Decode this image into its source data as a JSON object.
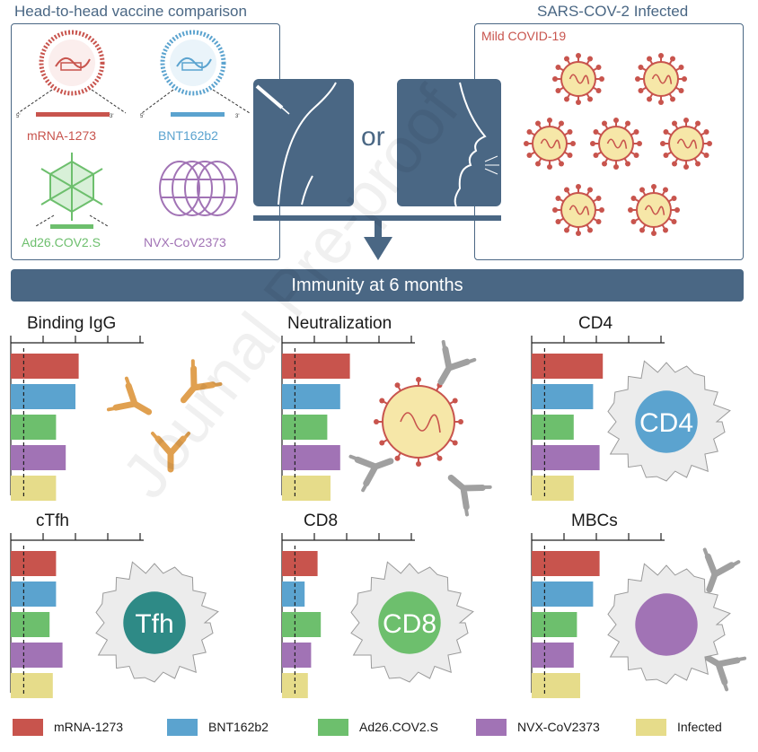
{
  "header": {
    "left_title": "Head-to-head vaccine comparison",
    "right_title": "SARS-COV-2 Infected",
    "mild_label": "Mild COVID-19",
    "or_label": "or",
    "banner": "Immunity at 6 months"
  },
  "vaccines": [
    {
      "name": "mRNA-1273",
      "color": "#c8544d"
    },
    {
      "name": "BNT162b2",
      "color": "#5ba3cf"
    },
    {
      "name": "Ad26.COV2.S",
      "color": "#6dbf6d"
    },
    {
      "name": "NVX-CoV2373",
      "color": "#a173b5"
    }
  ],
  "legend": [
    {
      "name": "mRNA-1273",
      "color": "#c8544d"
    },
    {
      "name": "BNT162b2",
      "color": "#5ba3cf"
    },
    {
      "name": "Ad26.COV2.S",
      "color": "#6dbf6d"
    },
    {
      "name": "NVX-CoV2373",
      "color": "#a173b5"
    },
    {
      "name": "Infected",
      "color": "#e6dc8a"
    }
  ],
  "watermark": "Journal Pre-proof",
  "chart_data": [
    {
      "type": "bar",
      "title": "Binding IgG",
      "categories": [
        "mRNA-1273",
        "BNT162b2",
        "Ad26.COV2.S",
        "NVX-CoV2373",
        "Infected"
      ],
      "values": [
        2.1,
        2.0,
        1.4,
        1.7,
        1.4
      ],
      "xlim": [
        0,
        4
      ],
      "threshold": 0.4
    },
    {
      "type": "bar",
      "title": "Neutralization",
      "categories": [
        "mRNA-1273",
        "BNT162b2",
        "Ad26.COV2.S",
        "NVX-CoV2373",
        "Infected"
      ],
      "values": [
        2.1,
        1.8,
        1.4,
        1.8,
        1.5
      ],
      "xlim": [
        0,
        4
      ],
      "threshold": 0.4
    },
    {
      "type": "bar",
      "title": "CD4",
      "categories": [
        "mRNA-1273",
        "BNT162b2",
        "Ad26.COV2.S",
        "NVX-CoV2373",
        "Infected"
      ],
      "values": [
        2.2,
        1.9,
        1.3,
        2.1,
        1.3
      ],
      "xlim": [
        0,
        4
      ],
      "threshold": 0.4
    },
    {
      "type": "bar",
      "title": "cTfh",
      "categories": [
        "mRNA-1273",
        "BNT162b2",
        "Ad26.COV2.S",
        "NVX-CoV2373",
        "Infected"
      ],
      "values": [
        1.4,
        1.4,
        1.2,
        1.6,
        1.3
      ],
      "xlim": [
        0,
        4
      ],
      "threshold": 0.4
    },
    {
      "type": "bar",
      "title": "CD8",
      "categories": [
        "mRNA-1273",
        "BNT162b2",
        "Ad26.COV2.S",
        "NVX-CoV2373",
        "Infected"
      ],
      "values": [
        1.1,
        0.7,
        1.2,
        0.9,
        0.8
      ],
      "xlim": [
        0,
        4
      ],
      "threshold": 0.4
    },
    {
      "type": "bar",
      "title": "MBCs",
      "categories": [
        "mRNA-1273",
        "BNT162b2",
        "Ad26.COV2.S",
        "NVX-CoV2373",
        "Infected"
      ],
      "values": [
        2.1,
        1.9,
        1.4,
        1.3,
        1.5
      ],
      "xlim": [
        0,
        4
      ],
      "threshold": 0.4
    }
  ],
  "cells": {
    "cd4": "CD4",
    "tfh": "Tfh",
    "cd8": "CD8"
  }
}
